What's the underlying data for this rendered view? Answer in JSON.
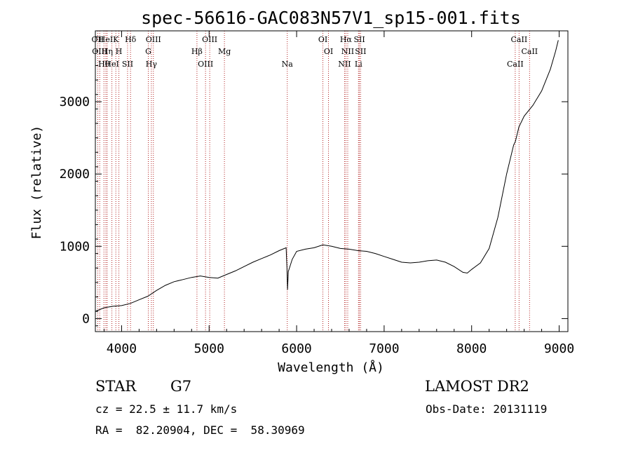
{
  "chart_data": {
    "type": "line",
    "title": "spec-56616-GAC083N57V1_sp15-001.fits",
    "xlabel": "Wavelength (Å)",
    "ylabel": "Flux (relative)",
    "xlim": [
      3700,
      9100
    ],
    "ylim": [
      -180,
      3980
    ],
    "x_ticks": [
      4000,
      5000,
      6000,
      7000,
      8000,
      9000
    ],
    "y_ticks": [
      0,
      1000,
      2000,
      3000
    ],
    "grid": false,
    "legend": "none",
    "series": [
      {
        "x": [
          3700,
          3800,
          3900,
          4000,
          4100,
          4200,
          4300,
          4400,
          4500,
          4600,
          4700,
          4800,
          4900,
          5000,
          5100,
          5200,
          5300,
          5400,
          5500,
          5600,
          5700,
          5800,
          5880,
          5890,
          5896,
          5905,
          5950,
          6000,
          6100,
          6200,
          6300,
          6400,
          6500,
          6600,
          6700,
          6800,
          6900,
          7000,
          7100,
          7200,
          7300,
          7400,
          7500,
          7600,
          7700,
          7800,
          7900,
          7950,
          8000,
          8100,
          8200,
          8300,
          8400,
          8480,
          8500,
          8540,
          8600,
          8700,
          8800,
          8900,
          8960,
          8990
        ],
        "y": [
          100,
          150,
          170,
          180,
          210,
          260,
          310,
          390,
          460,
          510,
          540,
          570,
          590,
          570,
          560,
          610,
          660,
          720,
          780,
          830,
          880,
          940,
          980,
          700,
          400,
          650,
          820,
          930,
          960,
          980,
          1020,
          1000,
          970,
          960,
          940,
          930,
          900,
          860,
          820,
          780,
          770,
          780,
          800,
          810,
          780,
          720,
          640,
          630,
          680,
          770,
          970,
          1400,
          2000,
          2400,
          2450,
          2650,
          2800,
          2950,
          3150,
          3450,
          3700,
          3850
        ]
      }
    ],
    "lines": [
      {
        "wavelength": 3727,
        "labels": [
          "OII"
        ]
      },
      {
        "wavelength": 3750,
        "labels": [
          "OIII"
        ]
      },
      {
        "wavelength": 3798,
        "labels": [
          "Hθ"
        ]
      },
      {
        "wavelength": 3820,
        "labels": [
          "HeI"
        ]
      },
      {
        "wavelength": 3835,
        "labels": [
          "Hη"
        ]
      },
      {
        "wavelength": 3889,
        "labels": [
          "HeI"
        ]
      },
      {
        "wavelength": 3934,
        "labels": [
          "K"
        ]
      },
      {
        "wavelength": 3969,
        "labels": [
          "H"
        ]
      },
      {
        "wavelength": 4068,
        "labels": [
          "SII"
        ]
      },
      {
        "wavelength": 4102,
        "labels": [
          "Hδ"
        ]
      },
      {
        "wavelength": 4305,
        "labels": [
          "G"
        ]
      },
      {
        "wavelength": 4340,
        "labels": [
          "Hγ"
        ]
      },
      {
        "wavelength": 4363,
        "labels": [
          "OIII"
        ]
      },
      {
        "wavelength": 4861,
        "labels": [
          "Hβ"
        ]
      },
      {
        "wavelength": 4959,
        "labels": [
          "OIII"
        ]
      },
      {
        "wavelength": 5007,
        "labels": [
          "OIII"
        ]
      },
      {
        "wavelength": 5175,
        "labels": [
          "Mg"
        ]
      },
      {
        "wavelength": 5893,
        "labels": [
          "Na"
        ]
      },
      {
        "wavelength": 6300,
        "labels": [
          "OI"
        ]
      },
      {
        "wavelength": 6364,
        "labels": [
          "OI"
        ]
      },
      {
        "wavelength": 6548,
        "labels": [
          "NII"
        ]
      },
      {
        "wavelength": 6563,
        "labels": [
          "Hα"
        ]
      },
      {
        "wavelength": 6584,
        "labels": [
          "NII"
        ]
      },
      {
        "wavelength": 6707,
        "labels": [
          "Li"
        ]
      },
      {
        "wavelength": 6717,
        "labels": [
          "SII"
        ]
      },
      {
        "wavelength": 6731,
        "labels": [
          "SII"
        ]
      },
      {
        "wavelength": 8498,
        "labels": [
          "CaII"
        ]
      },
      {
        "wavelength": 8542,
        "labels": [
          "CaII"
        ]
      },
      {
        "wavelength": 8662,
        "labels": [
          "CaII"
        ]
      }
    ]
  },
  "info": {
    "class": "STAR",
    "subclass": "G7",
    "survey": "LAMOST DR2",
    "redshift": "cz = 22.5 ± 11.7 km/s",
    "obs_date": "Obs-Date: 20131119",
    "coords": "RA =  82.20904, DEC =  58.30969"
  }
}
